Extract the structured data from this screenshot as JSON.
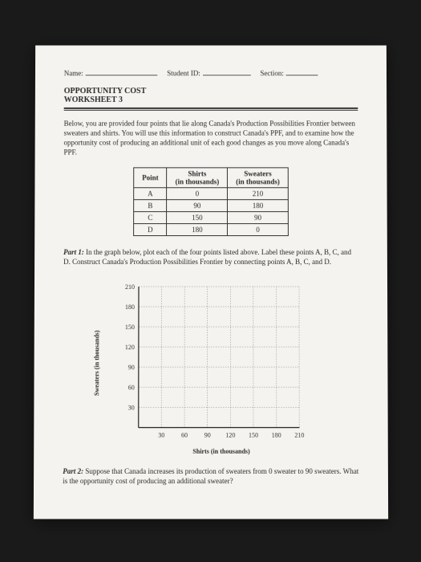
{
  "header": {
    "name_label": "Name:",
    "id_label": "Student ID:",
    "section_label": "Section:"
  },
  "title": {
    "line1": "OPPORTUNITY COST",
    "line2": "WORKSHEET 3"
  },
  "intro": "Below, you are provided four points that lie along Canada's Production Possibilities Frontier between sweaters and shirts. You will use this information to construct Canada's PPF, and to examine how the opportunity cost of producing an additional unit of each good changes as you move along Canada's PPF.",
  "table": {
    "headers": {
      "point": "Point",
      "shirts": "Shirts",
      "shirts_unit": "(in thousands)",
      "sweaters": "Sweaters",
      "sweaters_unit": "(in thousands)"
    },
    "rows": [
      {
        "point": "A",
        "shirts": "0",
        "sweaters": "210"
      },
      {
        "point": "B",
        "shirts": "90",
        "sweaters": "180"
      },
      {
        "point": "C",
        "shirts": "150",
        "sweaters": "90"
      },
      {
        "point": "D",
        "shirts": "180",
        "sweaters": "0"
      }
    ]
  },
  "part1": {
    "label": "Part 1:",
    "text": " In the graph below, plot each of the four points listed above. Label these points A, B, C, and D. Construct Canada's Production Possibilities Frontier by connecting points A, B, C, and D."
  },
  "chart": {
    "xlabel": "Shirts (in thousands)",
    "ylabel": "Sweaters (in thousands)",
    "xticks": [
      "30",
      "60",
      "90",
      "120",
      "150",
      "180",
      "210"
    ],
    "yticks": [
      "30",
      "60",
      "90",
      "120",
      "150",
      "180",
      "210"
    ],
    "grid_color": "#888",
    "axis_color": "#222",
    "background_color": "#f5f3ef"
  },
  "part2": {
    "label": "Part 2:",
    "text": " Suppose that Canada increases its production of sweaters from 0 sweater to 90 sweaters. What is the opportunity cost of producing an additional sweater?"
  }
}
